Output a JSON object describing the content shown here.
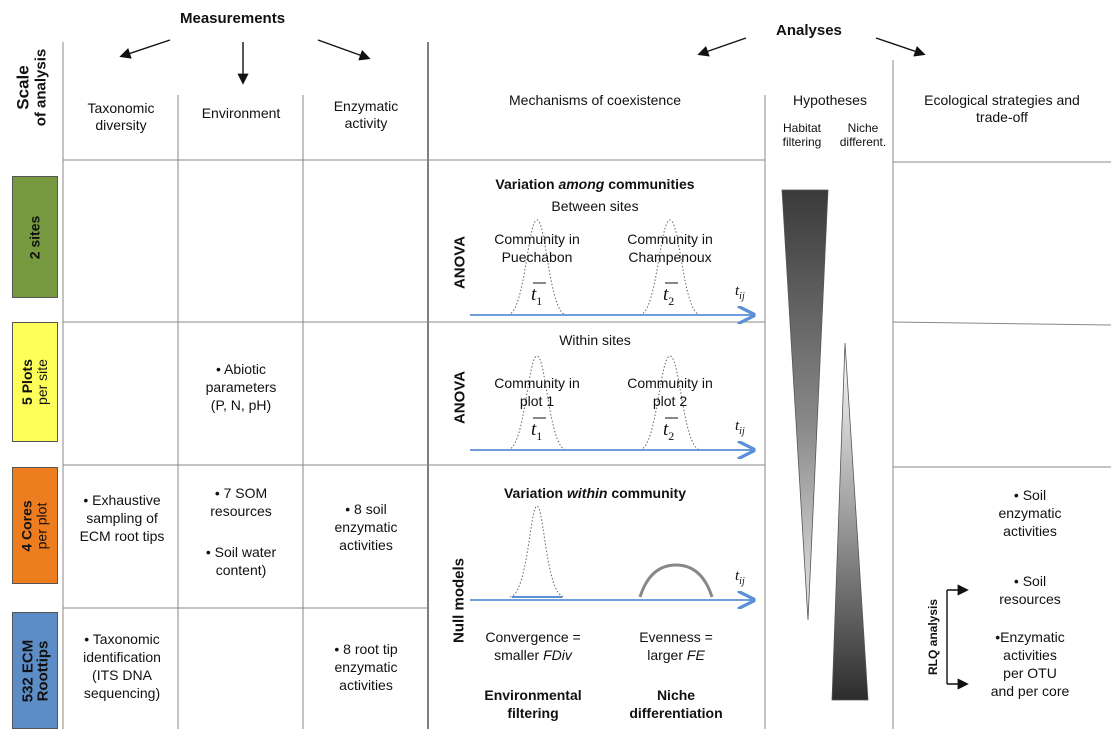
{
  "top": {
    "measurements": "Measurements",
    "analyses": "Analyses"
  },
  "scale_header": [
    "Scale",
    "of analysis"
  ],
  "columns": {
    "taxonomic": [
      "Taxonomic",
      "diversity"
    ],
    "environment": "Environment",
    "enzymatic": [
      "Enzymatic",
      "activity"
    ],
    "mechanisms": "Mechanisms of coexistence",
    "hypotheses": "Hypotheses",
    "habitat": [
      "Habitat",
      "filtering"
    ],
    "niche": [
      "Niche",
      "different."
    ],
    "ecological": [
      "Ecological strategies and",
      "trade-off"
    ]
  },
  "scales": [
    {
      "main": "2 sites",
      "sub": "",
      "color": "#77993f"
    },
    {
      "main": "5 Plots",
      "sub": "per site",
      "color": "#ffff5a"
    },
    {
      "main": "4 Cores",
      "sub": "per plot",
      "color": "#ee7d20"
    },
    {
      "main": "532 ECM",
      "sub": "Roottips",
      "color": "#5c8dc6"
    }
  ],
  "cells": {
    "env_plots": [
      "• Abiotic",
      "parameters",
      "(P, N, pH)"
    ],
    "tax_cores": [
      "• Exhaustive",
      "sampling of",
      "ECM root tips"
    ],
    "env_cores_a": [
      "• 7 SOM",
      "resources"
    ],
    "env_cores_b": [
      "• Soil water",
      "content)"
    ],
    "enz_cores": [
      "• 8 soil",
      "enzymatic",
      "activities"
    ],
    "tax_roottips": [
      "• Taxonomic",
      "identification",
      "(ITS DNA",
      "sequencing)"
    ],
    "enz_roottips": [
      "• 8 root tip",
      "enzymatic",
      "activities"
    ]
  },
  "mechanisms": {
    "among_pre": "Variation ",
    "among_em": "among",
    "among_post": " communities",
    "between_sites": "Between sites",
    "comm1": [
      "Community in",
      "Puechabon"
    ],
    "comm2": [
      "Community in",
      "Champenoux"
    ],
    "within_sites": "Within sites",
    "comm3": [
      "Community in",
      "plot 1"
    ],
    "comm4": [
      "Community in",
      "plot 2"
    ],
    "anova": "ANOVA",
    "t1": "t",
    "t1_sub": "1",
    "t2": "t",
    "t2_sub": "2",
    "tij": "t",
    "tij_sub": "ij",
    "within_pre": "Variation ",
    "within_em": "within",
    "within_post": " community",
    "null_models": "Null models",
    "convergence": [
      "Convergence =",
      "smaller "
    ],
    "convergence_em": "FDiv",
    "evenness": [
      "Evenness =",
      "larger "
    ],
    "evenness_em": "FE",
    "env_filtering": [
      "Environmental",
      "filtering"
    ],
    "niche_diff": [
      "Niche",
      "differentiation"
    ]
  },
  "ecological": {
    "soil_enz": [
      "• Soil",
      "enzymatic",
      "activities"
    ],
    "soil_res": [
      "• Soil",
      "resources"
    ],
    "enz_otu": [
      "•Enzymatic",
      "activities",
      "per OTU",
      "and per core"
    ],
    "rlq": "RLQ analysis"
  }
}
